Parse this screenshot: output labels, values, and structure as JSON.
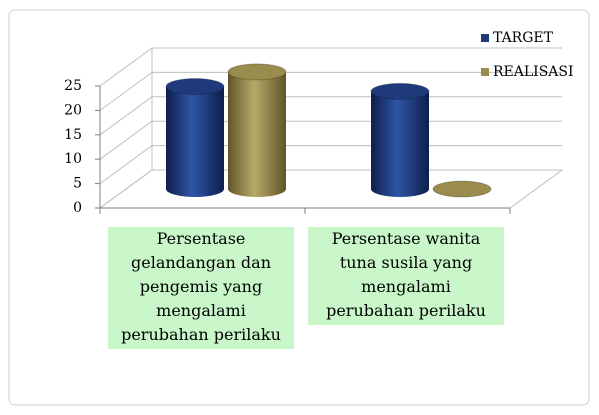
{
  "chart_data": {
    "type": "bar3d",
    "categories": [
      "Persentase gelandangan dan pengemis yang mengalami perubahan perilaku",
      "Persentase wanita tuna susila yang mengalami perubahan perilaku"
    ],
    "series": [
      {
        "name": "TARGET",
        "color": "#1f3a7a",
        "values": [
          21,
          20
        ]
      },
      {
        "name": "REALISASI",
        "color": "#9a8c4d",
        "values": [
          24,
          0
        ]
      }
    ],
    "ylim": [
      0,
      25
    ],
    "yticks": [
      0,
      5,
      10,
      15,
      20,
      25
    ],
    "grid": true,
    "legend": "top-right"
  }
}
